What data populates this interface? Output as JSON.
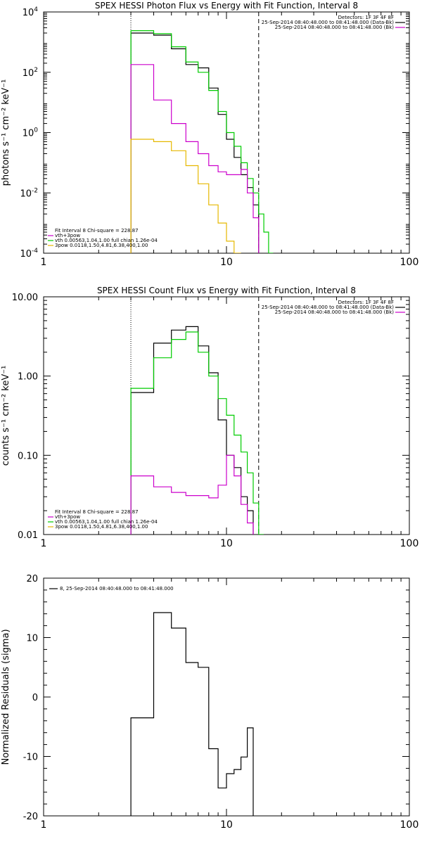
{
  "chart_data": [
    {
      "type": "line",
      "title": "SPEX HESSI Photon Flux vs Energy with Fit Function, Interval 8",
      "ylabel": "photons s⁻¹ cm⁻² keV⁻¹",
      "xlabel": "",
      "xscale": "log",
      "yscale": "log",
      "xlim": [
        1,
        100
      ],
      "ylim": [
        0.0001,
        10000
      ],
      "xticks": [
        "1",
        "10",
        "100"
      ],
      "yticks": [
        {
          "v": 10000,
          "base": "10",
          "exp": "4"
        },
        {
          "v": 100,
          "base": "10",
          "exp": "2"
        },
        {
          "v": 1,
          "base": "10",
          "exp": "0"
        },
        {
          "v": 0.01,
          "base": "10",
          "exp": "-2"
        },
        {
          "v": 0.0001,
          "base": "10",
          "exp": "-4"
        }
      ],
      "vlines": [
        {
          "x": 3,
          "style": "dotted"
        },
        {
          "x": 15,
          "style": "dashed"
        }
      ],
      "legend_top": [
        "Detectors: 1F 3F 4F 8F",
        "25-Sep-2014 08:40:48.000 to 08:41:48.000 (Data-Bk)",
        "25-Sep-2014 08:40:48.000 to 08:41:48.000 (Bk)"
      ],
      "legend_top_colors": [
        "",
        "#000000",
        "#cc00cc"
      ],
      "legend_bottom": [
        "Fit Interval 8   Chi-square = 228.87",
        "vth+3pow",
        "vth 0.00563,1.04,1.00  full chian 1.26e-04",
        "3pow 0.0118,1.50,4.81,6.38,400,1.00"
      ],
      "legend_bottom_colors": [
        "",
        "#cc00cc",
        "#00cc00",
        "#e6b800"
      ],
      "edges": [
        3,
        4,
        5,
        6,
        7,
        8,
        9,
        10,
        11,
        12,
        13,
        14,
        15,
        16,
        17,
        18
      ],
      "series": [
        {
          "color": "#000000",
          "values": [
            2000,
            1700,
            600,
            180,
            140,
            30,
            4,
            0.6,
            0.15,
            0.04,
            0.015,
            0.004
          ]
        },
        {
          "color": "#00cc00",
          "values": [
            2400,
            1900,
            700,
            220,
            100,
            25,
            5,
            1,
            0.35,
            0.1,
            0.03,
            0.01,
            0.002,
            0.0005,
            0.0001
          ]
        },
        {
          "color": "#cc00cc",
          "values": [
            180,
            12,
            2,
            0.5,
            0.2,
            0.08,
            0.05,
            0.04,
            0.04,
            0.06,
            0.01,
            0.0015
          ]
        },
        {
          "color": "#e6b800",
          "values": [
            0.6,
            0.5,
            0.25,
            0.08,
            0.02,
            0.004,
            0.001,
            0.00025,
            0.0001
          ]
        }
      ]
    },
    {
      "type": "line",
      "title": "SPEX HESSI Count Flux vs Energy with Fit Function, Interval 8",
      "ylabel": "counts s⁻¹ cm⁻² keV⁻¹",
      "xlabel": "",
      "xscale": "log",
      "yscale": "log",
      "xlim": [
        1,
        100
      ],
      "ylim": [
        0.01,
        10
      ],
      "xticks": [
        "1",
        "10",
        "100"
      ],
      "yticks": [
        {
          "v": 10,
          "label": "10.00"
        },
        {
          "v": 1,
          "label": "1.00"
        },
        {
          "v": 0.1,
          "label": "0.10"
        },
        {
          "v": 0.01,
          "label": "0.01"
        }
      ],
      "vlines": [
        {
          "x": 3,
          "style": "dotted"
        },
        {
          "x": 15,
          "style": "dashed"
        }
      ],
      "legend_top": [
        "Detectors: 1F 3F 4F 8F",
        "25-Sep-2014 08:40:48.000 to 08:41:48.000 (Data-Bk)",
        "25-Sep-2014 08:40:48.000 to 08:41:48.000 (Bk)"
      ],
      "legend_top_colors": [
        "",
        "#000000",
        "#cc00cc"
      ],
      "legend_bottom": [
        "Fit Interval 8   Chi-square = 228.87",
        "vth+3pow",
        "vth 0.00563,1.04,1.00  full chian 1.26e-04",
        "3pow 0.0118,1.50,4.81,6.38,400,1.00"
      ],
      "legend_bottom_colors": [
        "",
        "#cc00cc",
        "#00cc00",
        "#e6b800"
      ],
      "edges": [
        3,
        4,
        5,
        6,
        7,
        8,
        9,
        10,
        11,
        12,
        13,
        14,
        15,
        16
      ],
      "series": [
        {
          "color": "#000000",
          "values": [
            0.62,
            2.6,
            3.8,
            4.2,
            2.4,
            1.1,
            0.28,
            0.1,
            0.07,
            0.03,
            0.02
          ]
        },
        {
          "color": "#00cc00",
          "values": [
            0.7,
            1.7,
            2.9,
            3.6,
            2.0,
            1.0,
            0.52,
            0.32,
            0.18,
            0.11,
            0.06,
            0.025,
            0.008
          ]
        },
        {
          "color": "#cc00cc",
          "values": [
            0.055,
            0.04,
            0.034,
            0.031,
            0.031,
            0.029,
            0.042,
            0.1,
            0.055,
            0.024,
            0.014
          ]
        }
      ]
    },
    {
      "type": "line",
      "title": "",
      "ylabel": "Normalized Residuals (sigma)",
      "xlabel": "",
      "xscale": "log",
      "yscale": "linear",
      "xlim": [
        1,
        100
      ],
      "ylim": [
        -20,
        20
      ],
      "xticks": [
        "1",
        "10",
        "100"
      ],
      "yticks": [
        {
          "v": 20,
          "label": "20"
        },
        {
          "v": 10,
          "label": "10"
        },
        {
          "v": 0,
          "label": "0"
        },
        {
          "v": -10,
          "label": "-10"
        },
        {
          "v": -20,
          "label": "-20"
        }
      ],
      "legend_top": [
        "8, 25-Sep-2014 08:40:48.000 to 08:41:48.000"
      ],
      "edges": [
        3,
        4,
        5,
        6,
        7,
        8,
        9,
        10,
        11,
        12,
        13,
        14,
        15
      ],
      "series": [
        {
          "color": "#000000",
          "values": [
            -3.5,
            14.2,
            11.6,
            5.8,
            5.0,
            -8.7,
            -15.3,
            -12.9,
            -12.2,
            -10.1,
            -5.2
          ]
        }
      ]
    }
  ]
}
